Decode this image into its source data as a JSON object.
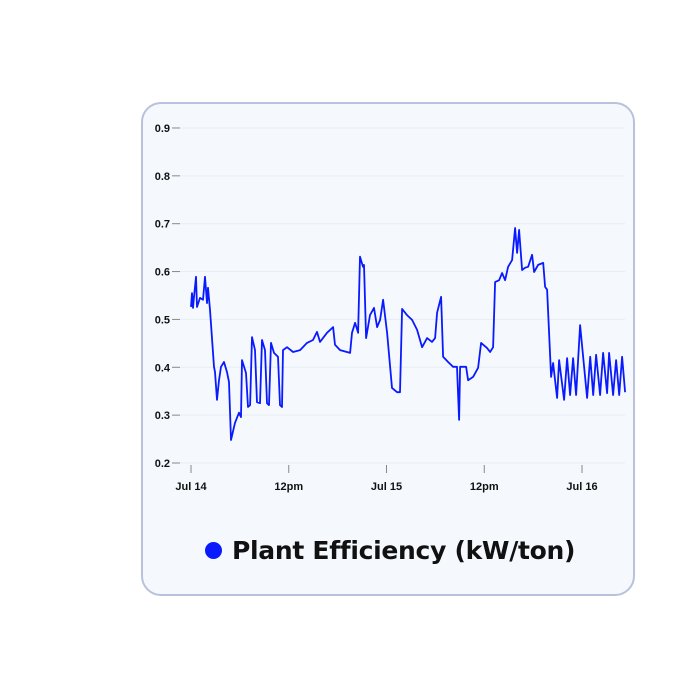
{
  "chart_data": {
    "type": "line",
    "title": "",
    "xlabel": "",
    "ylabel": "",
    "x_units": "hours since Jul 14 00:00",
    "xlim": [
      0,
      54
    ],
    "ylim": [
      0.2,
      0.9
    ],
    "grid": true,
    "legend_position": "bottom",
    "y_ticks": [
      {
        "value": 0.2,
        "label": "0.2"
      },
      {
        "value": 0.3,
        "label": "0.3"
      },
      {
        "value": 0.4,
        "label": "0.4"
      },
      {
        "value": 0.5,
        "label": "0.5"
      },
      {
        "value": 0.6,
        "label": "0.6"
      },
      {
        "value": 0.7,
        "label": "0.7"
      },
      {
        "value": 0.8,
        "label": "0.8"
      },
      {
        "value": 0.9,
        "label": "0.9"
      }
    ],
    "x_ticks": [
      {
        "value": 0,
        "label": "Jul 14"
      },
      {
        "value": 12,
        "label": "12pm"
      },
      {
        "value": 24,
        "label": "Jul 15"
      },
      {
        "value": 36,
        "label": "12pm"
      },
      {
        "value": 48,
        "label": "Jul 16"
      }
    ],
    "series": [
      {
        "name": "Plant Efficiency (kW/ton)",
        "color": "#0a1aff",
        "points": [
          [
            0,
            0.526
          ],
          [
            0.12,
            0.555
          ],
          [
            0.25,
            0.524
          ],
          [
            0.37,
            0.547
          ],
          [
            0.61,
            0.589
          ],
          [
            0.74,
            0.526
          ],
          [
            1.11,
            0.545
          ],
          [
            1.47,
            0.541
          ],
          [
            1.72,
            0.589
          ],
          [
            1.96,
            0.534
          ],
          [
            2.09,
            0.566
          ],
          [
            2.33,
            0.52
          ],
          [
            2.82,
            0.401
          ],
          [
            2.95,
            0.39
          ],
          [
            3.19,
            0.332
          ],
          [
            3.44,
            0.373
          ],
          [
            3.68,
            0.401
          ],
          [
            4.05,
            0.411
          ],
          [
            4.42,
            0.39
          ],
          [
            4.67,
            0.369
          ],
          [
            4.91,
            0.248
          ],
          [
            5.4,
            0.284
          ],
          [
            5.89,
            0.305
          ],
          [
            6.14,
            0.296
          ],
          [
            6.26,
            0.415
          ],
          [
            6.75,
            0.388
          ],
          [
            7.0,
            0.317
          ],
          [
            7.25,
            0.321
          ],
          [
            7.49,
            0.463
          ],
          [
            7.86,
            0.436
          ],
          [
            8.1,
            0.327
          ],
          [
            8.47,
            0.325
          ],
          [
            8.72,
            0.457
          ],
          [
            9.09,
            0.436
          ],
          [
            9.33,
            0.325
          ],
          [
            9.58,
            0.321
          ],
          [
            9.82,
            0.451
          ],
          [
            10.19,
            0.43
          ],
          [
            10.68,
            0.422
          ],
          [
            10.93,
            0.321
          ],
          [
            11.17,
            0.317
          ],
          [
            11.3,
            0.436
          ],
          [
            11.79,
            0.442
          ],
          [
            12.53,
            0.432
          ],
          [
            13.39,
            0.436
          ],
          [
            14.24,
            0.451
          ],
          [
            14.98,
            0.457
          ],
          [
            15.47,
            0.474
          ],
          [
            15.84,
            0.453
          ],
          [
            16.7,
            0.472
          ],
          [
            17.44,
            0.484
          ],
          [
            17.68,
            0.447
          ],
          [
            18.3,
            0.436
          ],
          [
            19.53,
            0.43
          ],
          [
            19.77,
            0.472
          ],
          [
            20.14,
            0.493
          ],
          [
            20.51,
            0.472
          ],
          [
            20.75,
            0.631
          ],
          [
            21.12,
            0.61
          ],
          [
            21.24,
            0.614
          ],
          [
            21.49,
            0.461
          ],
          [
            21.98,
            0.509
          ],
          [
            22.47,
            0.524
          ],
          [
            22.84,
            0.484
          ],
          [
            23.21,
            0.499
          ],
          [
            23.58,
            0.541
          ],
          [
            24.07,
            0.472
          ],
          [
            24.68,
            0.357
          ],
          [
            25.3,
            0.348
          ],
          [
            25.66,
            0.348
          ],
          [
            25.91,
            0.522
          ],
          [
            26.52,
            0.509
          ],
          [
            27.14,
            0.499
          ],
          [
            27.75,
            0.478
          ],
          [
            28.37,
            0.442
          ],
          [
            28.98,
            0.461
          ],
          [
            29.59,
            0.453
          ],
          [
            29.96,
            0.461
          ],
          [
            30.21,
            0.514
          ],
          [
            30.7,
            0.547
          ],
          [
            30.95,
            0.422
          ],
          [
            31.56,
            0.411
          ],
          [
            32.17,
            0.401
          ],
          [
            32.66,
            0.401
          ],
          [
            32.91,
            0.29
          ],
          [
            33.03,
            0.401
          ],
          [
            33.77,
            0.401
          ],
          [
            34.02,
            0.373
          ],
          [
            34.63,
            0.38
          ],
          [
            35.24,
            0.399
          ],
          [
            35.61,
            0.451
          ],
          [
            36.35,
            0.44
          ],
          [
            36.72,
            0.432
          ],
          [
            37.09,
            0.442
          ],
          [
            37.33,
            0.578
          ],
          [
            37.82,
            0.582
          ],
          [
            38.19,
            0.597
          ],
          [
            38.56,
            0.582
          ],
          [
            38.93,
            0.61
          ],
          [
            39.42,
            0.624
          ],
          [
            39.79,
            0.691
          ],
          [
            40.03,
            0.639
          ],
          [
            40.28,
            0.687
          ],
          [
            40.65,
            0.603
          ],
          [
            41.02,
            0.608
          ],
          [
            41.38,
            0.61
          ],
          [
            41.87,
            0.635
          ],
          [
            42.12,
            0.599
          ],
          [
            42.61,
            0.614
          ],
          [
            43.23,
            0.618
          ],
          [
            43.47,
            0.568
          ],
          [
            43.72,
            0.562
          ],
          [
            44.21,
            0.38
          ],
          [
            44.45,
            0.409
          ],
          [
            44.94,
            0.336
          ],
          [
            45.19,
            0.415
          ],
          [
            45.8,
            0.332
          ],
          [
            46.17,
            0.419
          ],
          [
            46.54,
            0.342
          ],
          [
            46.91,
            0.419
          ],
          [
            47.28,
            0.342
          ],
          [
            47.77,
            0.488
          ],
          [
            48.63,
            0.336
          ],
          [
            49.0,
            0.422
          ],
          [
            49.37,
            0.342
          ],
          [
            49.73,
            0.426
          ],
          [
            50.22,
            0.342
          ],
          [
            50.59,
            0.43
          ],
          [
            51.08,
            0.346
          ],
          [
            51.33,
            0.43
          ],
          [
            51.82,
            0.342
          ],
          [
            52.19,
            0.415
          ],
          [
            52.56,
            0.342
          ],
          [
            52.92,
            0.422
          ],
          [
            53.29,
            0.348
          ]
        ]
      }
    ]
  }
}
